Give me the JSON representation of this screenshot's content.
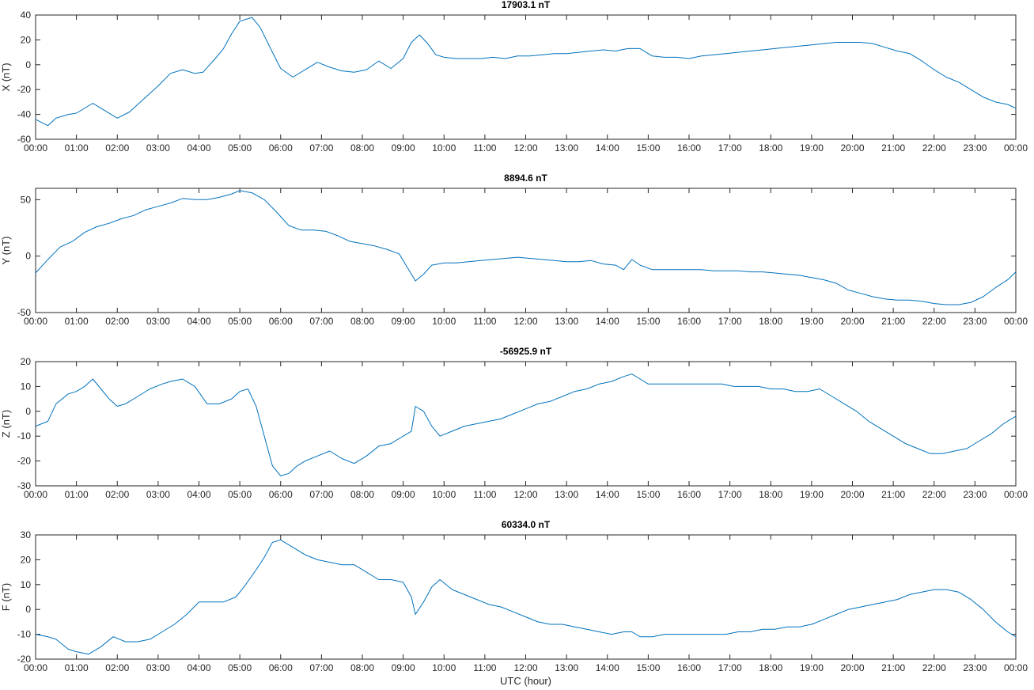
{
  "chart_data": [
    {
      "type": "line",
      "title": "17903.1 nT",
      "ylabel": "X (nT)",
      "xlabel": "",
      "ylim": [
        -60,
        40
      ],
      "yticks": [
        -60,
        -40,
        -20,
        0,
        20,
        40
      ],
      "xlim": [
        0,
        24
      ],
      "series": [
        {
          "name": "X",
          "x": [
            0,
            0.3,
            0.5,
            0.8,
            1.0,
            1.4,
            1.7,
            2.0,
            2.3,
            2.7,
            3.0,
            3.3,
            3.6,
            3.9,
            4.1,
            4.4,
            4.6,
            4.8,
            5.0,
            5.3,
            5.5,
            5.8,
            6.0,
            6.3,
            6.6,
            6.9,
            7.2,
            7.5,
            7.8,
            8.1,
            8.4,
            8.7,
            9.0,
            9.2,
            9.4,
            9.6,
            9.8,
            10.0,
            10.3,
            10.6,
            10.9,
            11.2,
            11.5,
            11.8,
            12.1,
            12.4,
            12.7,
            13.0,
            13.3,
            13.6,
            13.9,
            14.2,
            14.5,
            14.8,
            15.1,
            15.4,
            15.7,
            16.0,
            16.3,
            16.6,
            16.9,
            17.2,
            17.5,
            17.8,
            18.1,
            18.4,
            18.7,
            19.0,
            19.3,
            19.6,
            19.9,
            20.2,
            20.5,
            20.8,
            21.1,
            21.4,
            21.7,
            22.0,
            22.3,
            22.6,
            22.9,
            23.2,
            23.5,
            23.8,
            24.0
          ],
          "values": [
            -44,
            -49,
            -43,
            -40,
            -39,
            -31,
            -37,
            -43,
            -38,
            -26,
            -17,
            -7,
            -4,
            -7,
            -6,
            5,
            13,
            25,
            35,
            38,
            30,
            10,
            -3,
            -10,
            -4,
            2,
            -2,
            -5,
            -6,
            -4,
            3,
            -3,
            5,
            18,
            24,
            17,
            8,
            6,
            5,
            5,
            5,
            6,
            5,
            7,
            7,
            8,
            9,
            9,
            10,
            11,
            12,
            11,
            13,
            13,
            7,
            6,
            6,
            5,
            7,
            8,
            9,
            10,
            11,
            12,
            13,
            14,
            15,
            16,
            17,
            18,
            18,
            18,
            17,
            14,
            11,
            9,
            3,
            -4,
            -10,
            -14,
            -20,
            -26,
            -30,
            -32,
            -35
          ]
        }
      ]
    },
    {
      "type": "line",
      "title": "8894.6 nT",
      "ylabel": "Y (nT)",
      "xlabel": "",
      "ylim": [
        -50,
        60
      ],
      "yticks": [
        -50,
        0,
        50
      ],
      "xlim": [
        0,
        24
      ],
      "series": [
        {
          "name": "Y",
          "x": [
            0,
            0.3,
            0.6,
            0.9,
            1.2,
            1.5,
            1.8,
            2.1,
            2.4,
            2.7,
            3.0,
            3.3,
            3.6,
            3.9,
            4.2,
            4.5,
            4.8,
            5.0,
            5.3,
            5.6,
            5.9,
            6.2,
            6.5,
            6.8,
            7.1,
            7.4,
            7.7,
            8.0,
            8.3,
            8.6,
            8.9,
            9.1,
            9.3,
            9.5,
            9.7,
            10.0,
            10.3,
            10.6,
            10.9,
            11.2,
            11.5,
            11.8,
            12.1,
            12.4,
            12.7,
            13.0,
            13.3,
            13.6,
            13.9,
            14.2,
            14.4,
            14.6,
            14.8,
            15.1,
            15.4,
            15.7,
            16.0,
            16.3,
            16.6,
            16.9,
            17.2,
            17.5,
            17.8,
            18.1,
            18.4,
            18.7,
            19.0,
            19.3,
            19.6,
            19.9,
            20.2,
            20.5,
            20.8,
            21.1,
            21.4,
            21.7,
            22.0,
            22.3,
            22.6,
            22.9,
            23.2,
            23.5,
            23.8,
            24.0
          ],
          "values": [
            -15,
            -3,
            8,
            13,
            21,
            26,
            29,
            33,
            36,
            41,
            44,
            47,
            51,
            50,
            50,
            52,
            55,
            58,
            56,
            50,
            39,
            27,
            23,
            23,
            22,
            18,
            13,
            11,
            9,
            6,
            2,
            -10,
            -22,
            -16,
            -8,
            -6,
            -6,
            -5,
            -4,
            -3,
            -2,
            -1,
            -2,
            -3,
            -4,
            -5,
            -5,
            -4,
            -7,
            -8,
            -12,
            -3,
            -8,
            -12,
            -12,
            -12,
            -12,
            -12,
            -13,
            -13,
            -13,
            -14,
            -14,
            -15,
            -16,
            -17,
            -19,
            -21,
            -24,
            -30,
            -33,
            -36,
            -38,
            -39,
            -39,
            -40,
            -42,
            -43,
            -43,
            -41,
            -36,
            -28,
            -21,
            -14
          ]
        }
      ]
    },
    {
      "type": "line",
      "title": "-56925.9 nT",
      "ylabel": "Z (nT)",
      "xlabel": "",
      "ylim": [
        -30,
        20
      ],
      "yticks": [
        -30,
        -20,
        -10,
        0,
        10,
        20
      ],
      "xlim": [
        0,
        24
      ],
      "series": [
        {
          "name": "Z",
          "x": [
            0,
            0.3,
            0.5,
            0.8,
            1.0,
            1.2,
            1.4,
            1.6,
            1.8,
            2.0,
            2.2,
            2.5,
            2.8,
            3.1,
            3.3,
            3.6,
            3.9,
            4.2,
            4.5,
            4.8,
            5.0,
            5.2,
            5.4,
            5.6,
            5.8,
            6.0,
            6.2,
            6.4,
            6.6,
            6.9,
            7.2,
            7.5,
            7.8,
            8.1,
            8.4,
            8.7,
            9.0,
            9.2,
            9.3,
            9.5,
            9.7,
            9.9,
            10.2,
            10.5,
            10.8,
            11.1,
            11.4,
            11.7,
            12.0,
            12.3,
            12.6,
            12.9,
            13.2,
            13.5,
            13.8,
            14.1,
            14.4,
            14.6,
            14.8,
            15.0,
            15.3,
            15.6,
            15.9,
            16.2,
            16.5,
            16.8,
            17.1,
            17.4,
            17.7,
            18.0,
            18.3,
            18.6,
            18.9,
            19.2,
            19.5,
            19.8,
            20.1,
            20.4,
            20.7,
            21.0,
            21.3,
            21.6,
            21.9,
            22.2,
            22.5,
            22.8,
            23.1,
            23.4,
            23.7,
            24.0
          ],
          "values": [
            -6,
            -4,
            3,
            7,
            8,
            10,
            13,
            9,
            5,
            2,
            3,
            6,
            9,
            11,
            12,
            13,
            10,
            3,
            3,
            5,
            8,
            9,
            2,
            -10,
            -22,
            -26,
            -25,
            -22,
            -20,
            -18,
            -16,
            -19,
            -21,
            -18,
            -14,
            -13,
            -10,
            -8,
            2,
            0,
            -6,
            -10,
            -8,
            -6,
            -5,
            -4,
            -3,
            -1,
            1,
            3,
            4,
            6,
            8,
            9,
            11,
            12,
            14,
            15,
            13,
            11,
            11,
            11,
            11,
            11,
            11,
            11,
            10,
            10,
            10,
            9,
            9,
            8,
            8,
            9,
            6,
            3,
            0,
            -4,
            -7,
            -10,
            -13,
            -15,
            -17,
            -17,
            -16,
            -15,
            -12,
            -9,
            -5,
            -2
          ]
        }
      ]
    },
    {
      "type": "line",
      "title": "60334.0 nT",
      "ylabel": "F (nT)",
      "xlabel": "UTC (hour)",
      "ylim": [
        -20,
        30
      ],
      "yticks": [
        -20,
        -10,
        0,
        10,
        20,
        30
      ],
      "xlim": [
        0,
        24
      ],
      "series": [
        {
          "name": "F",
          "x": [
            0,
            0.3,
            0.5,
            0.8,
            1.0,
            1.3,
            1.6,
            1.9,
            2.2,
            2.5,
            2.8,
            3.1,
            3.4,
            3.7,
            4.0,
            4.3,
            4.6,
            4.9,
            5.1,
            5.4,
            5.6,
            5.8,
            6.0,
            6.3,
            6.6,
            6.9,
            7.2,
            7.5,
            7.8,
            8.1,
            8.4,
            8.7,
            9.0,
            9.2,
            9.3,
            9.5,
            9.7,
            9.9,
            10.2,
            10.5,
            10.8,
            11.1,
            11.4,
            11.7,
            12.0,
            12.3,
            12.6,
            12.9,
            13.2,
            13.5,
            13.8,
            14.1,
            14.4,
            14.6,
            14.8,
            15.1,
            15.4,
            15.7,
            16.0,
            16.3,
            16.6,
            16.9,
            17.2,
            17.5,
            17.8,
            18.1,
            18.4,
            18.7,
            19.0,
            19.3,
            19.6,
            19.9,
            20.2,
            20.5,
            20.8,
            21.1,
            21.4,
            21.7,
            22.0,
            22.3,
            22.6,
            22.9,
            23.2,
            23.5,
            23.8,
            24.0
          ],
          "values": [
            -10,
            -11,
            -12,
            -16,
            -17,
            -18,
            -15,
            -11,
            -13,
            -13,
            -12,
            -9,
            -6,
            -2,
            3,
            3,
            3,
            5,
            9,
            16,
            21,
            27,
            28,
            25,
            22,
            20,
            19,
            18,
            18,
            15,
            12,
            12,
            11,
            5,
            -2,
            3,
            9,
            12,
            8,
            6,
            4,
            2,
            1,
            -1,
            -3,
            -5,
            -6,
            -6,
            -7,
            -8,
            -9,
            -10,
            -9,
            -9,
            -11,
            -11,
            -10,
            -10,
            -10,
            -10,
            -10,
            -10,
            -9,
            -9,
            -8,
            -8,
            -7,
            -7,
            -6,
            -4,
            -2,
            0,
            1,
            2,
            3,
            4,
            6,
            7,
            8,
            8,
            7,
            4,
            0,
            -5,
            -9,
            -11
          ]
        }
      ]
    }
  ],
  "x_tick_labels": [
    "00:00",
    "01:00",
    "02:00",
    "03:00",
    "04:00",
    "05:00",
    "06:00",
    "07:00",
    "08:00",
    "09:00",
    "10:00",
    "11:00",
    "12:00",
    "13:00",
    "14:00",
    "15:00",
    "16:00",
    "17:00",
    "18:00",
    "19:00",
    "20:00",
    "21:00",
    "22:00",
    "23:00",
    "00:00"
  ],
  "colors": {
    "line": "#0072bd",
    "axis": "#262626",
    "background": "#ffffff"
  }
}
